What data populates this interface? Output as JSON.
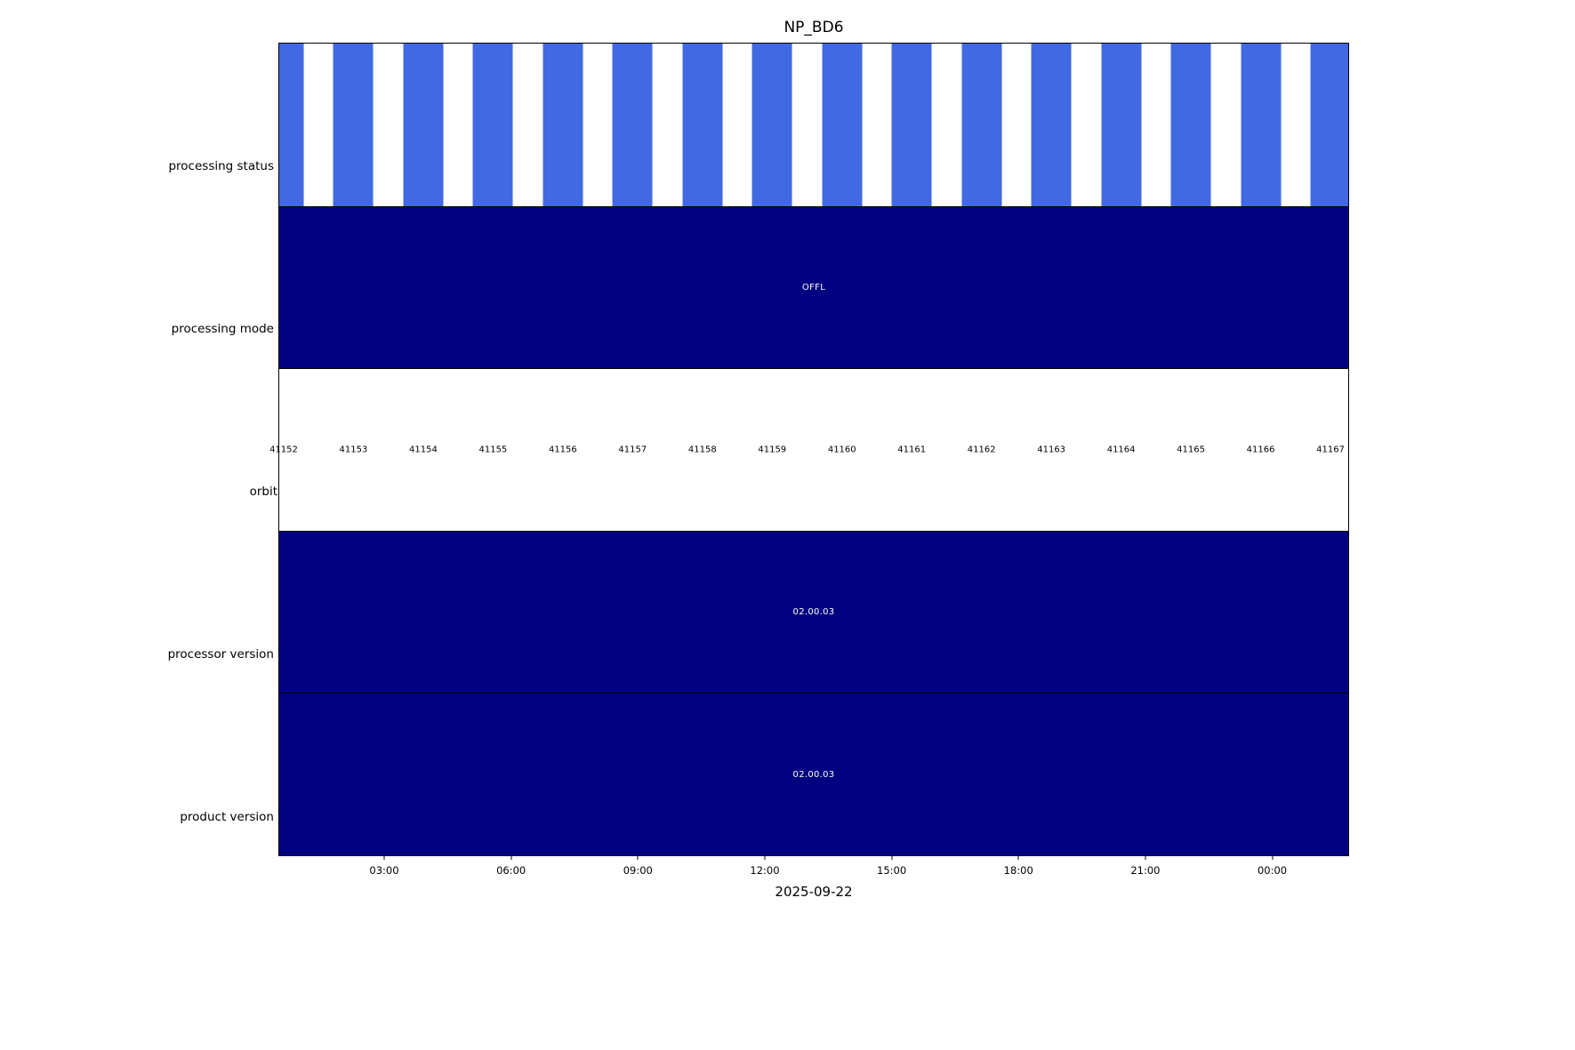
{
  "chart": {
    "title": "NP_BD6",
    "xlabel": "2025-09-22",
    "rows": {
      "processing_status": {
        "label": "processing status"
      },
      "processing_mode": {
        "label": "processing mode",
        "value": "OFFL"
      },
      "orbit": {
        "label": "orbit"
      },
      "processor_version": {
        "label": "processor version",
        "value": "02.00.03"
      },
      "product_version": {
        "label": "product version",
        "value": "02.00.03"
      }
    }
  },
  "chart_data": {
    "type": "timeline",
    "title": "NP_BD6",
    "date": "2025-09-22",
    "categories": [
      "processing status",
      "processing mode",
      "orbit",
      "processor version",
      "product version"
    ],
    "orbits": [
      41152,
      41153,
      41154,
      41155,
      41156,
      41157,
      41158,
      41159,
      41160,
      41161,
      41162,
      41163,
      41164,
      41165,
      41166,
      41167
    ],
    "rows": [
      {
        "name": "processing status",
        "type": "bars",
        "description": "one bar per orbit",
        "color": "#4169E1",
        "count": 16
      },
      {
        "name": "processing mode",
        "type": "span",
        "value": "OFFL",
        "color": "#000080"
      },
      {
        "name": "orbit",
        "type": "labels",
        "values": [
          41152,
          41153,
          41154,
          41155,
          41156,
          41157,
          41158,
          41159,
          41160,
          41161,
          41162,
          41163,
          41164,
          41165,
          41166,
          41167
        ]
      },
      {
        "name": "processor version",
        "type": "span",
        "value": "02.00.03",
        "color": "#000080"
      },
      {
        "name": "product version",
        "type": "span",
        "value": "02.00.03",
        "color": "#000080"
      }
    ],
    "x_ticks": [
      "03:00",
      "06:00",
      "09:00",
      "12:00",
      "15:00",
      "18:00",
      "21:00",
      "00:00"
    ],
    "colors": {
      "bar_blue": "#4169E1",
      "navy": "#000080",
      "background": "#ffffff",
      "text": "#000000"
    },
    "layout": {
      "legend": "none",
      "grid": false,
      "orbit_start_frac": 0.00415,
      "orbit_step_frac": 0.065282,
      "x_tick_start_frac": 0.09884,
      "x_tick_step_frac": 0.11848
    }
  }
}
